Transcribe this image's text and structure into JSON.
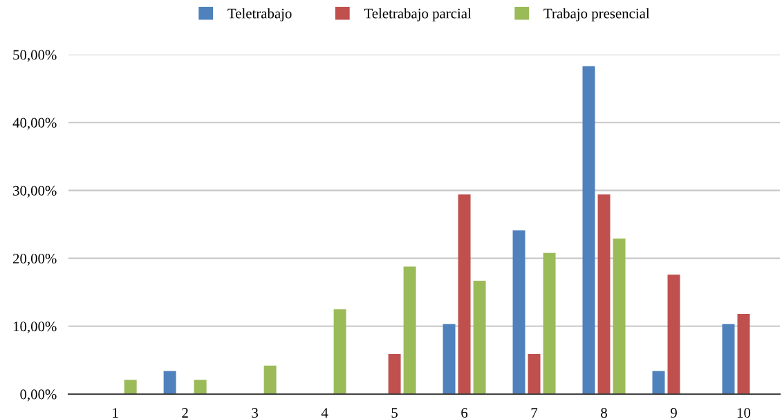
{
  "chart_data": {
    "type": "bar",
    "categories": [
      "1",
      "2",
      "3",
      "4",
      "5",
      "6",
      "7",
      "8",
      "9",
      "10"
    ],
    "series": [
      {
        "name": "Teletrabajo",
        "color": "#4f81bd",
        "values": [
          0,
          3.4,
          0,
          0,
          0,
          10.3,
          24.1,
          48.3,
          3.4,
          10.3
        ]
      },
      {
        "name": "Teletrabajo parcial",
        "color": "#c0504d",
        "values": [
          0,
          0,
          0,
          0,
          5.9,
          29.4,
          5.9,
          29.4,
          17.6,
          11.8
        ]
      },
      {
        "name": "Trabajo presencial",
        "color": "#9bbb59",
        "values": [
          2.1,
          2.1,
          4.2,
          12.5,
          18.8,
          16.7,
          20.8,
          22.9,
          0,
          0
        ]
      }
    ],
    "ylim": [
      0,
      50
    ],
    "yticks": [
      {
        "value": 0,
        "label": "0,00%"
      },
      {
        "value": 10,
        "label": "10,00%"
      },
      {
        "value": 20,
        "label": "20,00%"
      },
      {
        "value": 30,
        "label": "30,00%"
      },
      {
        "value": 40,
        "label": "40,00%"
      },
      {
        "value": 50,
        "label": "50,00%"
      }
    ],
    "grid": "y",
    "legend": "top"
  }
}
